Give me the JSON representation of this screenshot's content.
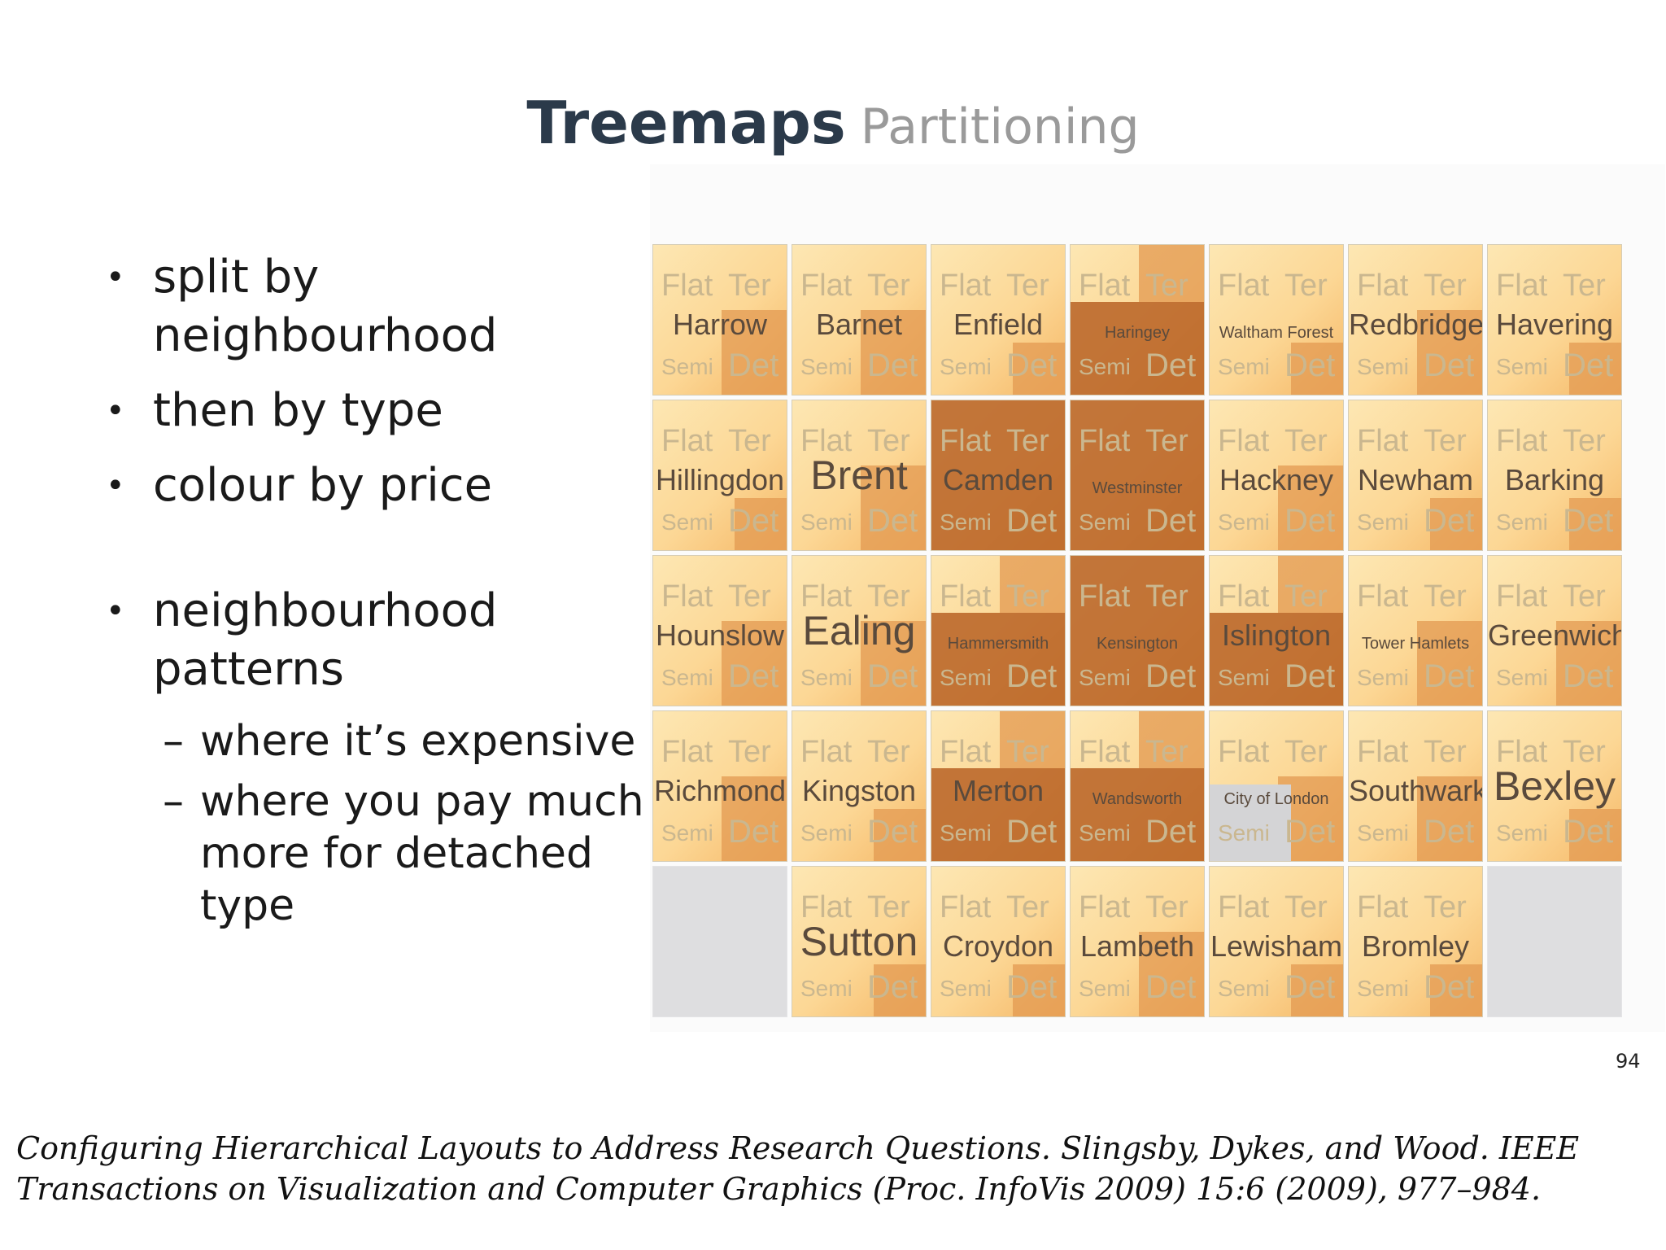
{
  "title": {
    "main": "Treemaps",
    "sub": "Partitioning"
  },
  "bullets": [
    "split by neighbourhood",
    "then by type",
    "colour by price"
  ],
  "bullet2": {
    "text": "neighbourhood patterns",
    "subs": [
      "where it’s expensive",
      "where you pay much more for detached type"
    ]
  },
  "treemap": {
    "type_labels": {
      "flat": "Flat",
      "ter": "Ter",
      "semi": "Semi",
      "det": "Det"
    },
    "rows": [
      [
        "Harrow",
        "Barnet",
        "Enfield",
        "Haringey",
        "Waltham Forest",
        "Redbridge",
        "Havering"
      ],
      [
        "Hillingdon",
        "Brent",
        "Camden",
        "Westminster",
        "Hackney",
        "Newham",
        "Barking"
      ],
      [
        "Hounslow",
        "Ealing",
        "Hammersmith",
        "Kensington",
        "Islington",
        "Tower Hamlets",
        "Greenwich"
      ],
      [
        "Richmond",
        "Kingston",
        "Merton",
        "Wandsworth",
        "City of London",
        "Southwark",
        "Bexley"
      ],
      [
        "",
        "Sutton",
        "Croydon",
        "Lambeth",
        "Lewisham",
        "Bromley",
        ""
      ]
    ]
  },
  "page_number": "94",
  "citation": "Configuring Hierarchical Layouts to Address Research Questions. Slingsby, Dykes, and Wood.  IEEE Transactions on Visualization and Computer Graphics (Proc. InfoVis 2009) 15:6 (2009), 977–984."
}
